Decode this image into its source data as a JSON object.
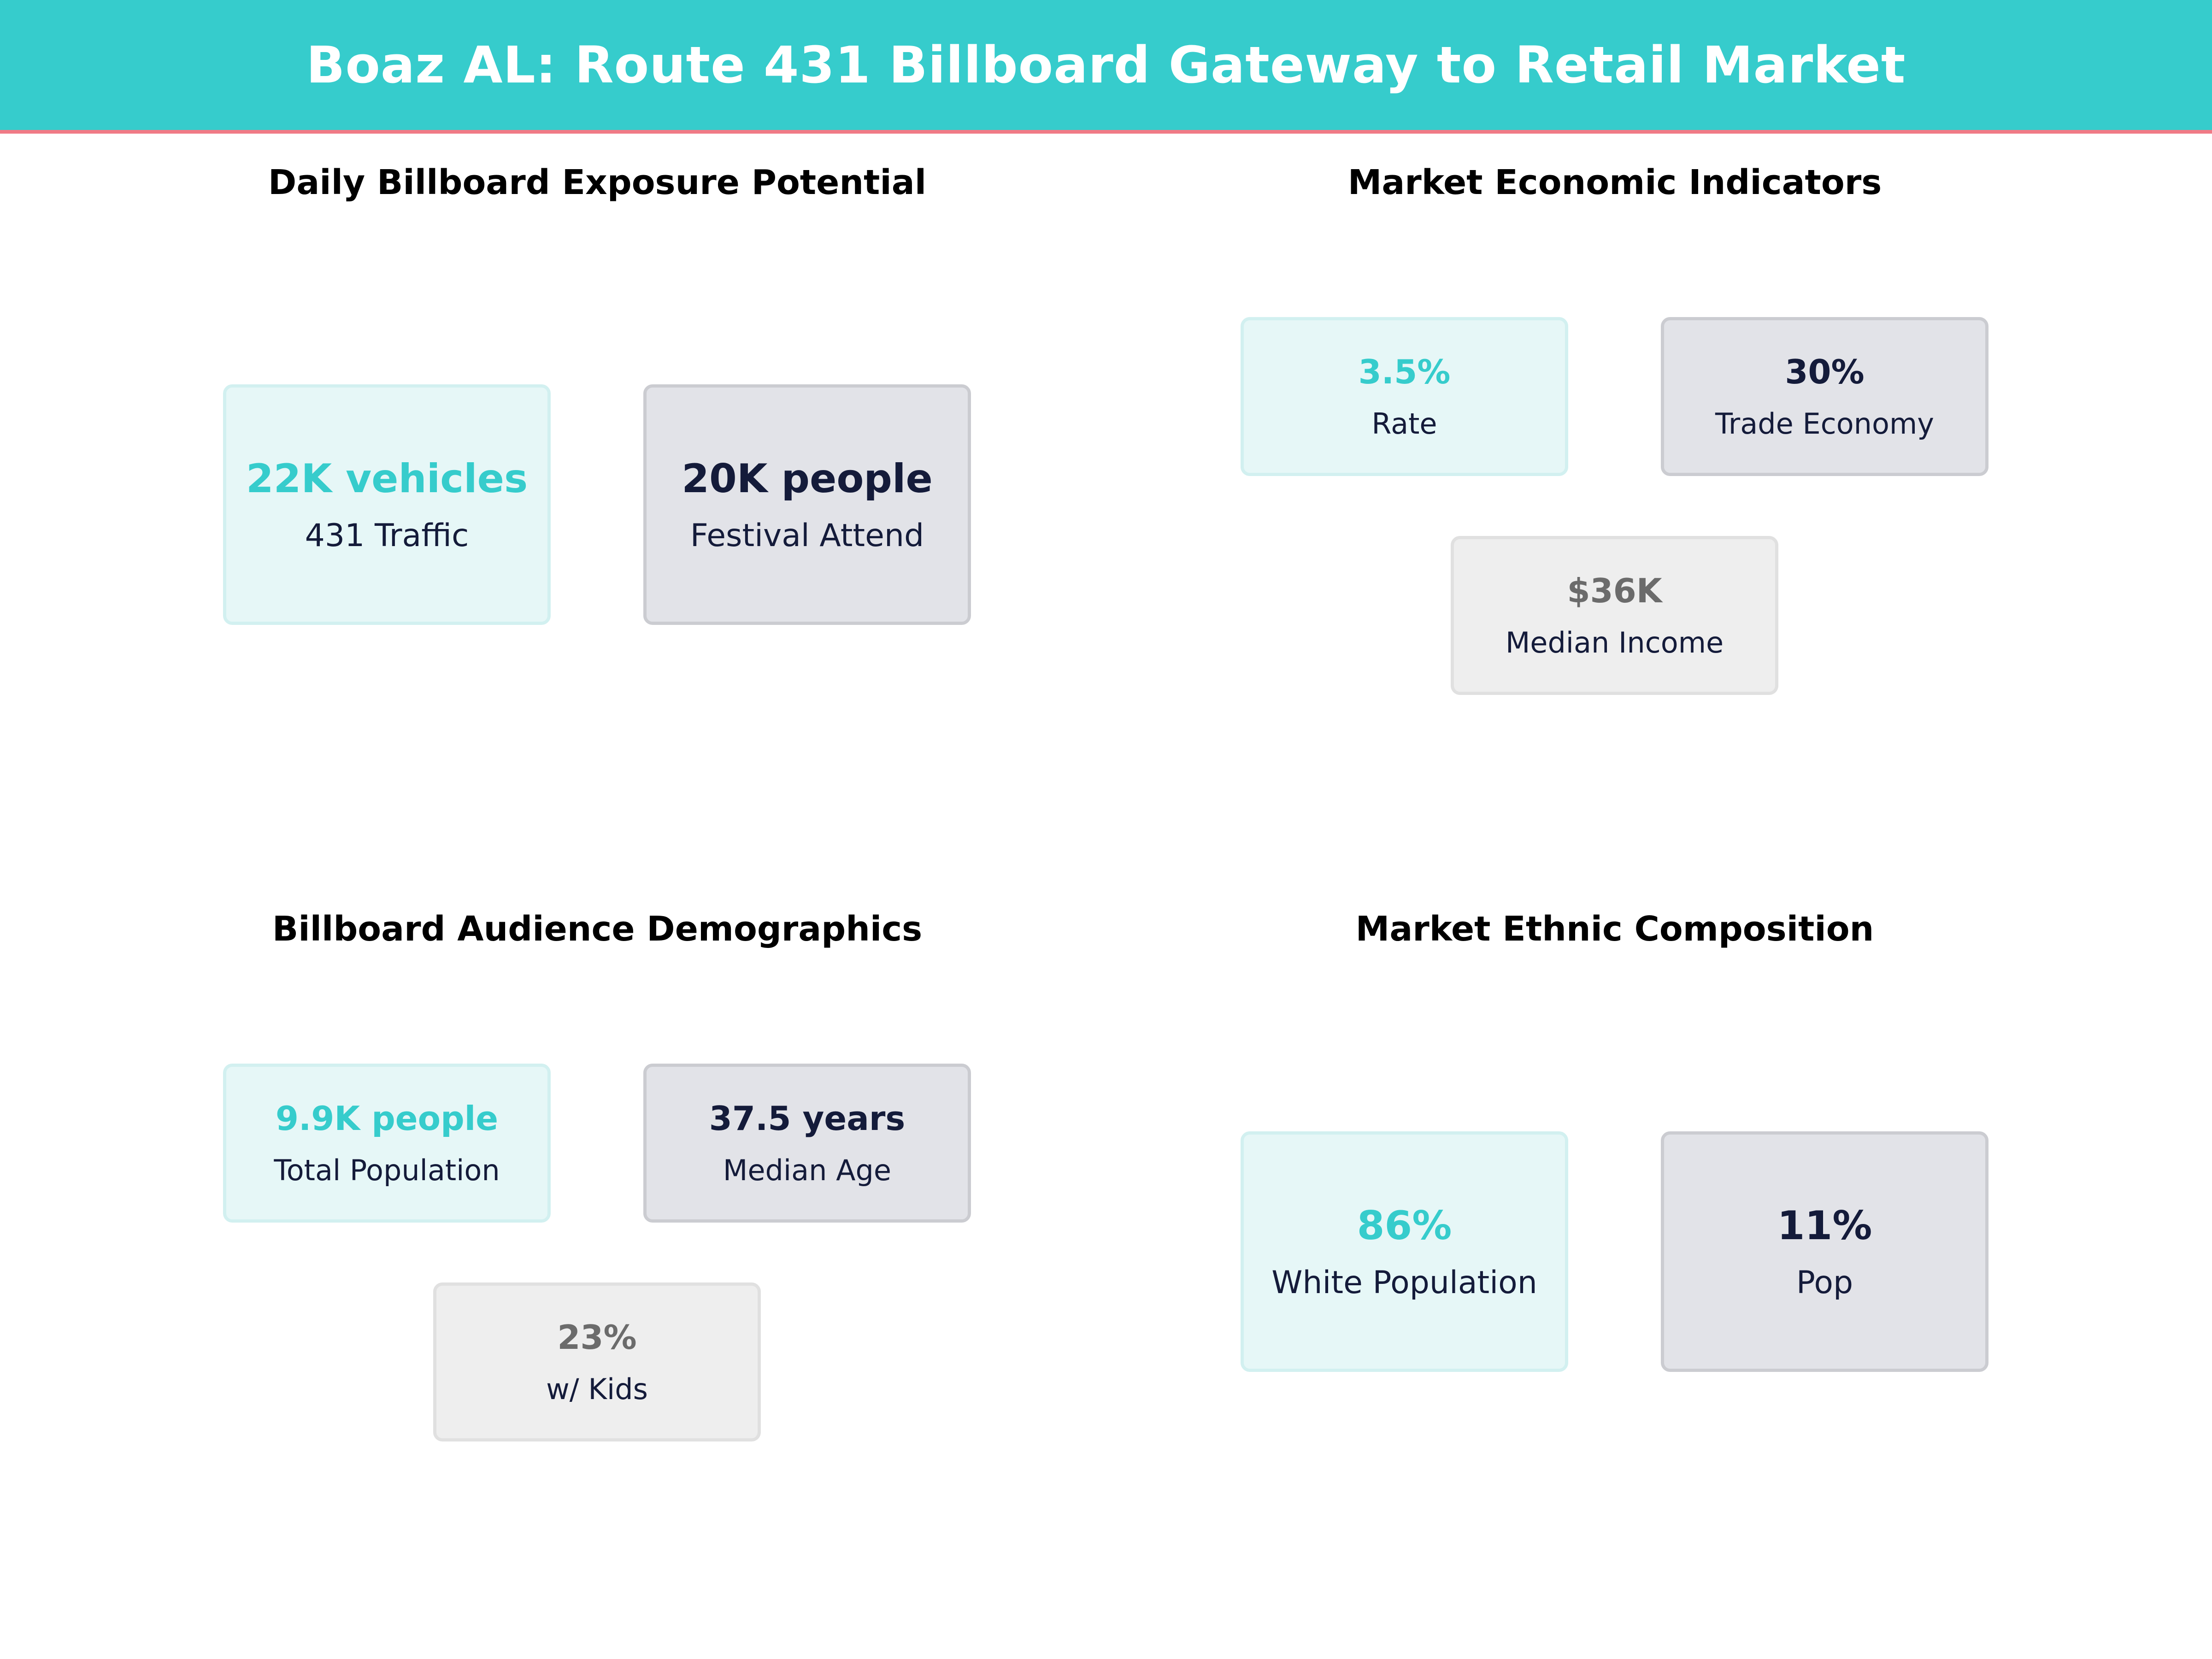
{
  "header": {
    "title": "Boaz AL: Route 431 Billboard Gateway to Retail Market"
  },
  "colors": {
    "header_bg": "#36CCCC",
    "header_rule": "#F07A86",
    "teal": "#36CCCC",
    "navy": "#141B3A",
    "gray": "#6B6B6B"
  },
  "chart_data": [
    {
      "type": "table",
      "title": "Daily Billboard Exposure Potential",
      "metrics": [
        {
          "value": "22K vehicles",
          "label": "431 Traffic"
        },
        {
          "value": "20K people",
          "label": "Festival Attend"
        }
      ]
    },
    {
      "type": "table",
      "title": "Market Economic Indicators",
      "metrics": [
        {
          "value": "3.5%",
          "label": "Rate"
        },
        {
          "value": "30%",
          "label": "Trade Economy"
        },
        {
          "value": "$36K",
          "label": "Median Income"
        }
      ]
    },
    {
      "type": "table",
      "title": "Billboard Audience Demographics",
      "metrics": [
        {
          "value": "9.9K people",
          "label": "Total Population"
        },
        {
          "value": "37.5 years",
          "label": "Median Age"
        },
        {
          "value": "23%",
          "label": "w/ Kids"
        }
      ]
    },
    {
      "type": "table",
      "title": "Market Ethnic Composition",
      "metrics": [
        {
          "value": "86%",
          "label": "White Population"
        },
        {
          "value": "11%",
          "label": "Pop"
        }
      ]
    }
  ]
}
